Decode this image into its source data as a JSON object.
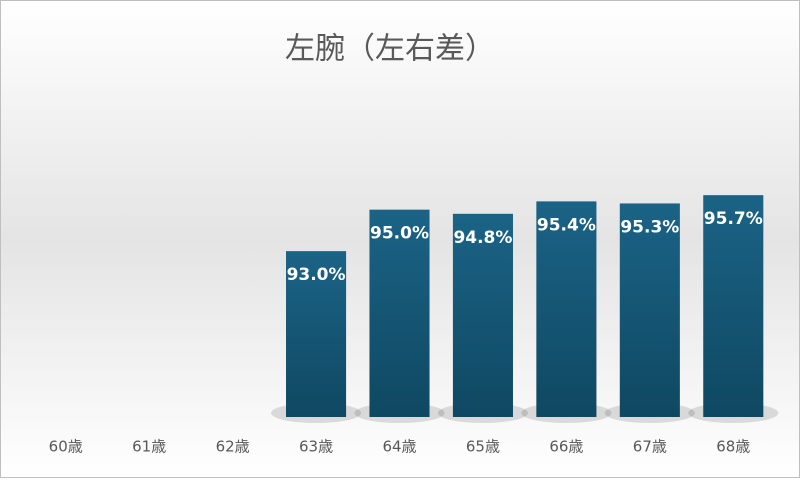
{
  "chart_data": {
    "type": "bar",
    "title": "左腕（左右差）",
    "categories": [
      "60歳",
      "61歳",
      "62歳",
      "63歳",
      "64歳",
      "65歳",
      "66歳",
      "67歳",
      "68歳"
    ],
    "values": [
      null,
      null,
      null,
      93.0,
      95.0,
      94.8,
      95.4,
      95.3,
      95.7
    ],
    "value_labels": [
      null,
      null,
      null,
      "93.0%",
      "95.0%",
      "94.8%",
      "95.4%",
      "95.3%",
      "95.7%"
    ],
    "color": "#175c7e",
    "ylim": [
      85,
      100
    ]
  }
}
